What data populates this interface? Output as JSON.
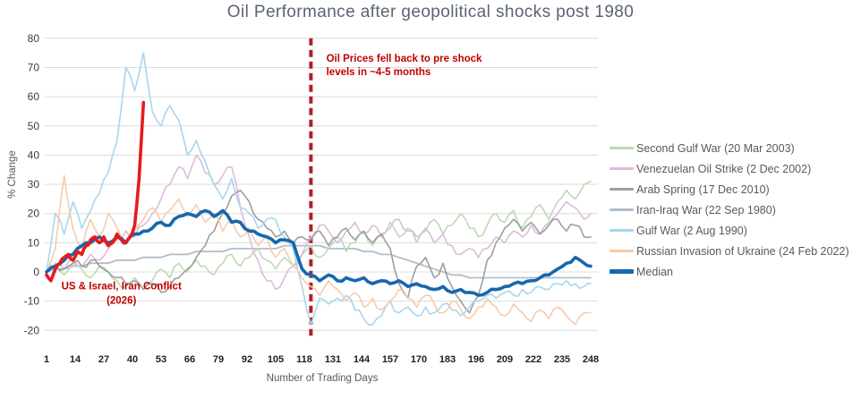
{
  "title": "Oil Performance after geopolitical shocks post 1980",
  "chart_data": {
    "type": "line",
    "title": "Oil Performance after geopolitical shocks post 1980",
    "xlabel": "Number of Trading Days",
    "ylabel": "% Change",
    "xlim": [
      1,
      248
    ],
    "ylim": [
      -20,
      80
    ],
    "x_ticks": [
      1,
      14,
      27,
      40,
      53,
      66,
      79,
      92,
      105,
      118,
      131,
      144,
      157,
      170,
      183,
      196,
      209,
      222,
      235,
      248
    ],
    "y_ticks": [
      80,
      70,
      60,
      50,
      40,
      30,
      20,
      10,
      0,
      -10,
      -20
    ],
    "grid": "horizontal",
    "grid_color": "#dcdcdc",
    "legend_position": "right",
    "sample_days": [
      1,
      5,
      9,
      13,
      17,
      21,
      25,
      29,
      33,
      37,
      41,
      45,
      49,
      53,
      57,
      61,
      65,
      69,
      73,
      77,
      81,
      85,
      89,
      93,
      97,
      101,
      105,
      109,
      113,
      117,
      121,
      125,
      129,
      133,
      137,
      141,
      145,
      149,
      153,
      157,
      161,
      165,
      169,
      173,
      177,
      181,
      185,
      189,
      193,
      197,
      201,
      205,
      209,
      213,
      217,
      221,
      225,
      229,
      233,
      237,
      241,
      245,
      248
    ],
    "series": [
      {
        "key": "second-gulf-war",
        "name": "Second Gulf War (20 Mar 2003)",
        "color": "#bcdab2",
        "width": 1.6,
        "z": 2,
        "legend": true,
        "values": [
          0,
          2,
          -1,
          3,
          1,
          -2,
          2,
          0,
          -3,
          -5,
          -2,
          -6,
          -3,
          1,
          -2,
          3,
          0,
          4,
          2,
          -1,
          3,
          6,
          2,
          5,
          8,
          4,
          1,
          5,
          2,
          6,
          9,
          5,
          8,
          12,
          7,
          10,
          14,
          9,
          13,
          17,
          12,
          15,
          10,
          14,
          18,
          13,
          16,
          20,
          15,
          12,
          16,
          20,
          17,
          21,
          15,
          19,
          23,
          18,
          24,
          28,
          25,
          30,
          31
        ]
      },
      {
        "key": "venezuelan-oil-strike",
        "name": "Venezuelan Oil Strike (2 Dec 2002)",
        "color": "#dcbcd9",
        "width": 1.6,
        "z": 3,
        "legend": true,
        "values": [
          0,
          3,
          1,
          5,
          2,
          6,
          4,
          8,
          11,
          14,
          12,
          16,
          20,
          25,
          30,
          36,
          32,
          40,
          34,
          30,
          33,
          36,
          22,
          12,
          4,
          -3,
          -6,
          -2,
          2,
          6,
          12,
          16,
          14,
          10,
          14,
          17,
          13,
          16,
          12,
          15,
          18,
          14,
          12,
          15,
          10,
          13,
          9,
          6,
          8,
          5,
          8,
          12,
          10,
          14,
          12,
          16,
          13,
          17,
          20,
          24,
          22,
          18,
          20
        ]
      },
      {
        "key": "arab-spring",
        "name": "Arab Spring (17 Dec 2010)",
        "color": "#9e9e9e",
        "width": 1.6,
        "z": 4,
        "legend": true,
        "values": [
          0,
          2,
          1,
          3,
          2,
          4,
          2,
          0,
          -2,
          -4,
          -3,
          -6,
          -4,
          -7,
          -5,
          -2,
          1,
          5,
          9,
          14,
          20,
          26,
          28,
          24,
          18,
          15,
          12,
          14,
          10,
          12,
          11,
          14,
          9,
          12,
          15,
          11,
          14,
          10,
          13,
          8,
          -4,
          -9,
          2,
          5,
          -2,
          3,
          -5,
          -10,
          -14,
          -8,
          4,
          10,
          15,
          18,
          14,
          17,
          13,
          16,
          18,
          14,
          16,
          12,
          12
        ]
      },
      {
        "key": "iran-iraq-war",
        "name": "Iran-Iraq War (22 Sep 1980)",
        "color": "#aebecb",
        "width": 1.8,
        "z": 1,
        "legend": true,
        "smooth": true,
        "values": [
          0,
          1,
          1,
          2,
          2,
          3,
          3,
          3,
          4,
          4,
          4,
          5,
          5,
          5,
          6,
          6,
          6,
          7,
          7,
          7,
          7,
          8,
          8,
          8,
          8,
          8,
          8,
          9,
          9,
          9,
          9,
          9,
          8,
          8,
          8,
          8,
          7,
          7,
          6,
          6,
          5,
          4,
          3,
          2,
          1,
          0,
          -1,
          -1,
          -2,
          -2,
          -2,
          -2,
          -2,
          -2,
          -2,
          -2,
          -2,
          -2,
          -2,
          -2,
          -2,
          -2,
          -2
        ]
      },
      {
        "key": "gulf-war",
        "name": "Gulf War (2 Aug 1990)",
        "color": "#a8d5ef",
        "width": 1.6,
        "z": 5,
        "legend": true,
        "values": [
          0,
          20,
          13,
          24,
          15,
          21,
          27,
          34,
          45,
          70,
          62,
          75,
          55,
          50,
          57,
          52,
          40,
          45,
          38,
          30,
          25,
          32,
          22,
          20,
          15,
          18,
          18,
          12,
          8,
          -5,
          -18,
          -9,
          -11,
          -9,
          -8,
          -13,
          -16,
          -18,
          -15,
          -10,
          -14,
          -12,
          -15,
          -12,
          -14,
          -11,
          -13,
          -15,
          -12,
          -10,
          -8,
          -9,
          -7,
          -8,
          -6,
          -7,
          -5,
          -6,
          -4,
          -3,
          -4,
          -5,
          -4
        ]
      },
      {
        "key": "russian-invasion-ukraine",
        "name": "Russian Invasion of Ukraine (24 Feb 2022)",
        "color": "#f7cbaa",
        "width": 1.6,
        "z": 6,
        "legend": true,
        "values": [
          0,
          8,
          33,
          15,
          8,
          18,
          12,
          20,
          15,
          10,
          14,
          18,
          22,
          17,
          21,
          25,
          19,
          23,
          17,
          20,
          14,
          18,
          12,
          15,
          9,
          12,
          5,
          8,
          2,
          -2,
          -5,
          -8,
          -3,
          -6,
          -10,
          -7,
          -12,
          -9,
          -13,
          -10,
          -6,
          -9,
          -12,
          -8,
          -11,
          -14,
          -10,
          -13,
          -16,
          -12,
          -9,
          -12,
          -15,
          -11,
          -14,
          -17,
          -13,
          -16,
          -12,
          -15,
          -18,
          -14,
          -14
        ]
      },
      {
        "key": "median",
        "name": "Median",
        "color": "#1667ae",
        "width": 3.6,
        "z": 7,
        "legend": true,
        "values": [
          0,
          2,
          4,
          6,
          9,
          10,
          12,
          10,
          12,
          10,
          13,
          14,
          15,
          17,
          16,
          19,
          20,
          19,
          21,
          19,
          21,
          17,
          17,
          14,
          13,
          12,
          10,
          11,
          10,
          1,
          -1,
          -3,
          -1,
          -3,
          -2,
          -3,
          -2,
          -4,
          -3,
          -4,
          -3,
          -5,
          -4,
          -5,
          -6,
          -5,
          -7,
          -6,
          -7,
          -8,
          -7,
          -6,
          -5,
          -4,
          -4,
          -3,
          -2,
          -1,
          1,
          3,
          5,
          3,
          2
        ]
      },
      {
        "key": "us-israel-iran-conflict",
        "name": "US & Israel, Iran Conflict (2026)",
        "color": "#e41c1c",
        "width": 3.6,
        "z": 8,
        "legend": false,
        "days": [
          1,
          3,
          5,
          7,
          9,
          11,
          13,
          15,
          17,
          19,
          21,
          23,
          25,
          27,
          29,
          31,
          33,
          35,
          37,
          39,
          41,
          43,
          45
        ],
        "values": [
          -1,
          -3,
          1,
          3,
          5,
          6,
          4,
          7,
          6,
          9,
          11,
          12,
          10,
          12,
          9,
          10,
          13,
          11,
          10,
          12,
          16,
          32,
          58
        ]
      }
    ],
    "event_line": {
      "day": 121,
      "color": "#b01f24",
      "width": 4,
      "dash": "8 5",
      "label_lines": [
        "Oil Prices fell back to pre shock",
        "levels in ~4-5 months"
      ],
      "label_color": "#c00000",
      "label_day": 128,
      "label_value": 72
    },
    "annotations": [
      {
        "id": "conflict-note",
        "lines": [
          "US & Israel, Iran Conflict",
          "(2026)"
        ],
        "day": 35,
        "value": -6,
        "color": "#c00000",
        "align": "center"
      }
    ],
    "axis": {
      "tick_color": "#3d3d3d",
      "x_tick_color": "#1f1f1f"
    }
  }
}
